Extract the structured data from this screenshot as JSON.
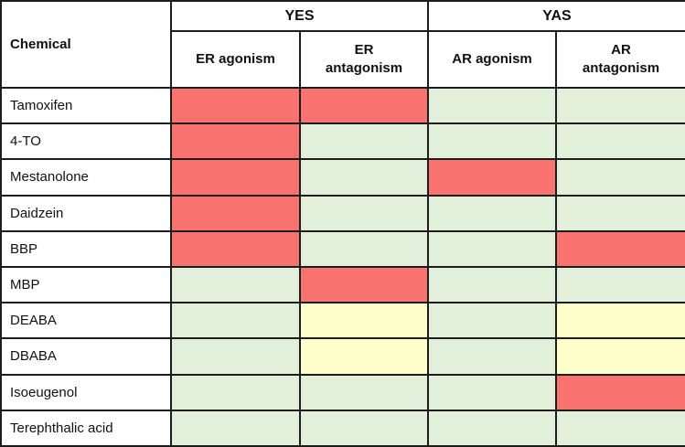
{
  "table": {
    "corner_header": "Chemical",
    "group_headers": [
      {
        "label": "YES",
        "colspan": 2
      },
      {
        "label": "YAS",
        "colspan": 2
      }
    ],
    "column_headers": [
      "ER agonism",
      "ER antagonism",
      "AR agonism",
      "AR antagonism"
    ],
    "legend_colors": {
      "positive": "#F87270",
      "negative": "#E2EFDA",
      "equivocal": "#FFFFCC"
    },
    "border_color": "#1C1C1C",
    "rows": [
      {
        "chemical": "Tamoxifen",
        "results": [
          "positive",
          "positive",
          "negative",
          "negative"
        ]
      },
      {
        "chemical": "4-TO",
        "results": [
          "positive",
          "negative",
          "negative",
          "negative"
        ]
      },
      {
        "chemical": "Mestanolone",
        "results": [
          "positive",
          "negative",
          "positive",
          "negative"
        ]
      },
      {
        "chemical": "Daidzein",
        "results": [
          "positive",
          "negative",
          "negative",
          "negative"
        ]
      },
      {
        "chemical": "BBP",
        "results": [
          "positive",
          "negative",
          "negative",
          "positive"
        ]
      },
      {
        "chemical": "MBP",
        "results": [
          "negative",
          "positive",
          "negative",
          "negative"
        ]
      },
      {
        "chemical": "DEABA",
        "results": [
          "negative",
          "equivocal",
          "negative",
          "equivocal"
        ]
      },
      {
        "chemical": "DBABA",
        "results": [
          "negative",
          "equivocal",
          "negative",
          "equivocal"
        ]
      },
      {
        "chemical": "Isoeugenol",
        "results": [
          "negative",
          "negative",
          "negative",
          "positive"
        ]
      },
      {
        "chemical": "Terephthalic acid",
        "results": [
          "negative",
          "negative",
          "negative",
          "negative"
        ]
      }
    ]
  }
}
